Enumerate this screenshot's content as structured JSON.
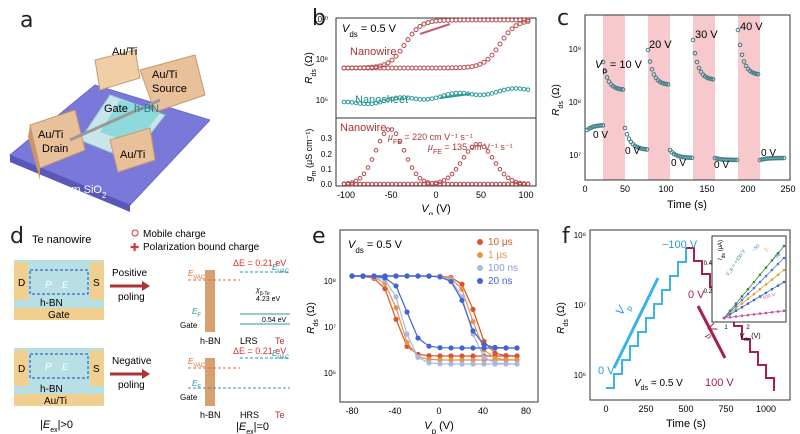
{
  "panels": {
    "a": {
      "label": "a",
      "pads": {
        "au_ti": "Au/Ti",
        "drain": "Drain",
        "source": "Source",
        "gate": "Gate",
        "hbn": "h-BN"
      },
      "substrate": "90 nm SiO",
      "substrate_sub": "2"
    },
    "b": {
      "label": "b",
      "vds": "V",
      "vds_sub": "ds",
      "vds_val": " = 0.5 V",
      "nanowire": "Nanowire",
      "nanosheet": "Nanosheet",
      "nanowire2": "Nanowire",
      "mu_fe1": "μ",
      "mu_fe1_sub": "FE",
      "mu_fe1_val": " = 220 cm V⁻¹ s⁻¹",
      "mu_fe2": "μ",
      "mu_fe2_sub": "FE",
      "mu_fe2_val": " = 135 cm V⁻¹ s⁻¹",
      "ylabel_top": "R",
      "ylabel_top_sub": "ds",
      "ylabel_top_unit": " (Ω)",
      "ylabel_bot": "g",
      "ylabel_bot_sub": "m",
      "ylabel_bot_unit": " (μS cm⁻¹)",
      "xlabel": "V",
      "xlabel_sub": "g",
      "xlabel_unit": " (V)",
      "yticks_top": [
        "10¹⁰",
        "10⁸",
        "10⁶"
      ],
      "yticks_bot": [
        "0.3",
        "0.2",
        "0.1",
        "0.0"
      ],
      "xticks": [
        "-100",
        "-50",
        "0",
        "50",
        "100"
      ]
    },
    "c": {
      "label": "c",
      "vp": "V",
      "vp_sub": "p",
      "vp_val": " = 10 V",
      "pulses": [
        "20 V",
        "30 V",
        "40 V"
      ],
      "zeros": [
        "0 V",
        "0 V",
        "0 V",
        "0 V",
        "0 V"
      ],
      "ylabel": "R",
      "ylabel_sub": "ds",
      "ylabel_unit": " (Ω)",
      "xlabel": "Time (s)",
      "yticks": [
        "10⁹",
        "10⁸",
        "10⁷"
      ],
      "xticks": [
        "0",
        "50",
        "100",
        "150",
        "200",
        "250"
      ]
    },
    "d": {
      "label": "d",
      "title": "Te nanowire",
      "legend_mobile": "Mobile charge",
      "legend_polar": "Polarization bound charge",
      "positive": "Positive",
      "negative": "Negative",
      "poling": "poling",
      "d": "D",
      "s": "S",
      "hbn": "h-BN",
      "gate": "Gate",
      "auti": "Au/Ti",
      "evac": "E",
      "evac_sub": "VAC",
      "delta_e": "ΔE = 0.21 eV",
      "chi": "χ",
      "chi_sub": "β-Te",
      "chi_val": "4.23 eV",
      "gap": "0.54 eV",
      "ef": "E",
      "ef_sub": "F",
      "lrs": "LRS",
      "hrs": "HRS",
      "te": "Te",
      "eex_gt": "|E",
      "eex_sub": "ex",
      "eex_gt_tail": "|>0",
      "eex_eq_tail": "|=0",
      "p": "P",
      "e_small": "E"
    },
    "e": {
      "label": "e",
      "vds": "V",
      "vds_sub": "ds",
      "vds_val": " = 0.5 V",
      "legend": [
        "10 μs",
        "1 μs",
        "100 ns",
        "20 ns"
      ],
      "colors": [
        "#d9532f",
        "#e6944a",
        "#a9b6e6",
        "#3f64d3"
      ],
      "ylabel": "R",
      "ylabel_sub": "ds",
      "ylabel_unit": " (Ω)",
      "xlabel": "V",
      "xlabel_sub": "p",
      "xlabel_unit": " (V)",
      "yticks": [
        "10⁸",
        "10⁷",
        "10⁶"
      ],
      "xticks": [
        "-80",
        "-40",
        "0",
        "40",
        "80"
      ]
    },
    "f": {
      "label": "f",
      "up_label": "−100 V",
      "zero_label": "0 V",
      "zero_left": "0 V",
      "down_label": "100 V",
      "vp": "V",
      "vp_sub": "p",
      "vds": "V",
      "vds_sub": "ds",
      "vds_val": " = 0.5 V",
      "ylabel": "R",
      "ylabel_sub": "ds",
      "ylabel_unit": " (Ω)",
      "xlabel": "Time (s)",
      "yticks": [
        "10⁸",
        "10⁷",
        "10⁶"
      ],
      "xticks": [
        "0",
        "250",
        "500",
        "750",
        "1000"
      ],
      "inset": {
        "ylabel": "I",
        "ylabel_sub": "ds",
        "ylabel_unit": " (μA)",
        "xlabel": "V",
        "xlabel_sub": "ds",
        "xlabel_unit": " (V)",
        "yticks": [
          "0.4",
          "0.2"
        ],
        "xticks": [
          "1",
          "2"
        ],
        "lines": [
          "V_p = +100 V",
          "−50",
          "0",
          "+50",
          "−100 V"
        ],
        "colors": [
          "#2e8b3a",
          "#4a76d1",
          "#e0a030",
          "#2b6cc4",
          "#d04aa0"
        ]
      }
    }
  }
}
